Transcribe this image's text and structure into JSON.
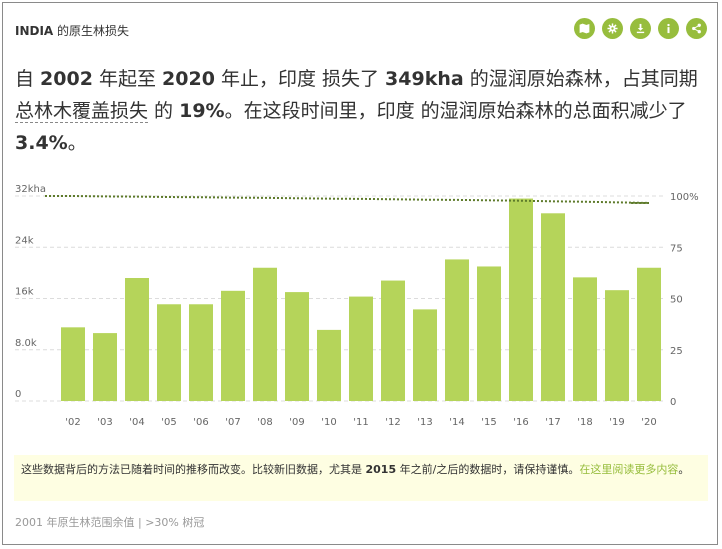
{
  "header": {
    "country": "INDIA",
    "title": " 的原生林损失"
  },
  "icons": [
    "map-icon",
    "settings-icon",
    "download-icon",
    "info-icon",
    "share-icon"
  ],
  "summary": {
    "p1": "自 ",
    "y1": "2002",
    "p2": " 年起至 ",
    "y2": "2020",
    "p3": " 年止，印度 损失了 ",
    "loss": "349kha",
    "p4": " 的湿润原始森林，占其同期",
    "link": "总林木覆盖损失",
    "p5": " 的 ",
    "pct": "19%",
    "p6": "。在这段时间里，印度 的湿润原始森林的总面积减少了 ",
    "pct2": "3.4%",
    "p7": "。"
  },
  "chart_data": {
    "type": "bar",
    "categories": [
      "'02",
      "'03",
      "'04",
      "'05",
      "'06",
      "'07",
      "'08",
      "'09",
      "'10",
      "'11",
      "'12",
      "'13",
      "'14",
      "'15",
      "'16",
      "'17",
      "'18",
      "'19",
      "'20"
    ],
    "values": [
      11.5,
      10.6,
      19.2,
      15.1,
      15.1,
      17.2,
      20.8,
      17.0,
      11.1,
      16.3,
      18.8,
      14.3,
      22.1,
      21.0,
      31.6,
      29.3,
      19.3,
      17.3,
      20.8
    ],
    "line_values": [
      100,
      99.8,
      99.7,
      99.5,
      99.4,
      99.2,
      99.1,
      98.9,
      98.7,
      98.6,
      98.4,
      98.2,
      98.1,
      97.9,
      97.7,
      97.4,
      97.2,
      96.9,
      96.6
    ],
    "ylim": [
      0,
      32
    ],
    "y_ticks": [
      "0",
      "8.0k",
      "16k",
      "24k",
      "32kha"
    ],
    "y2lim": [
      0,
      100
    ],
    "y2_ticks": [
      "0",
      "25",
      "50",
      "75",
      "100%"
    ],
    "bar_color": "#b5d45a",
    "line_color": "#5d7a2a"
  },
  "note": {
    "text": "这些数据背后的方法已随着时间的推移而改变。比较新旧数据，尤其是 ",
    "year": "2015",
    "text2": " 年之前/之后的数据时，请保持谨慎。",
    "link": "在这里阅读更多内容",
    "end": "。"
  },
  "footer": "2001 年原生林范围余值 | >30% 树冠"
}
